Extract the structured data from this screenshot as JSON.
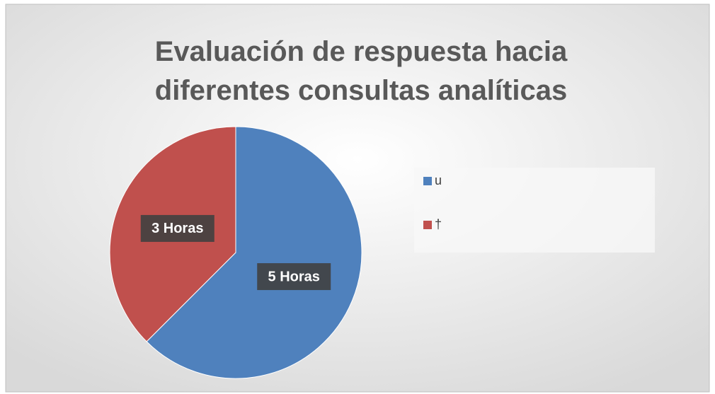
{
  "chart_data": {
    "type": "pie",
    "title": "Evaluación de respuesta hacia diferentes consultas analíticas",
    "categories": [
      "u",
      "†"
    ],
    "values": [
      5,
      3
    ],
    "value_labels": [
      "5 Horas",
      "3 Horas"
    ],
    "colors": [
      "#4f81bd",
      "#c0504d"
    ],
    "legend": "right"
  }
}
